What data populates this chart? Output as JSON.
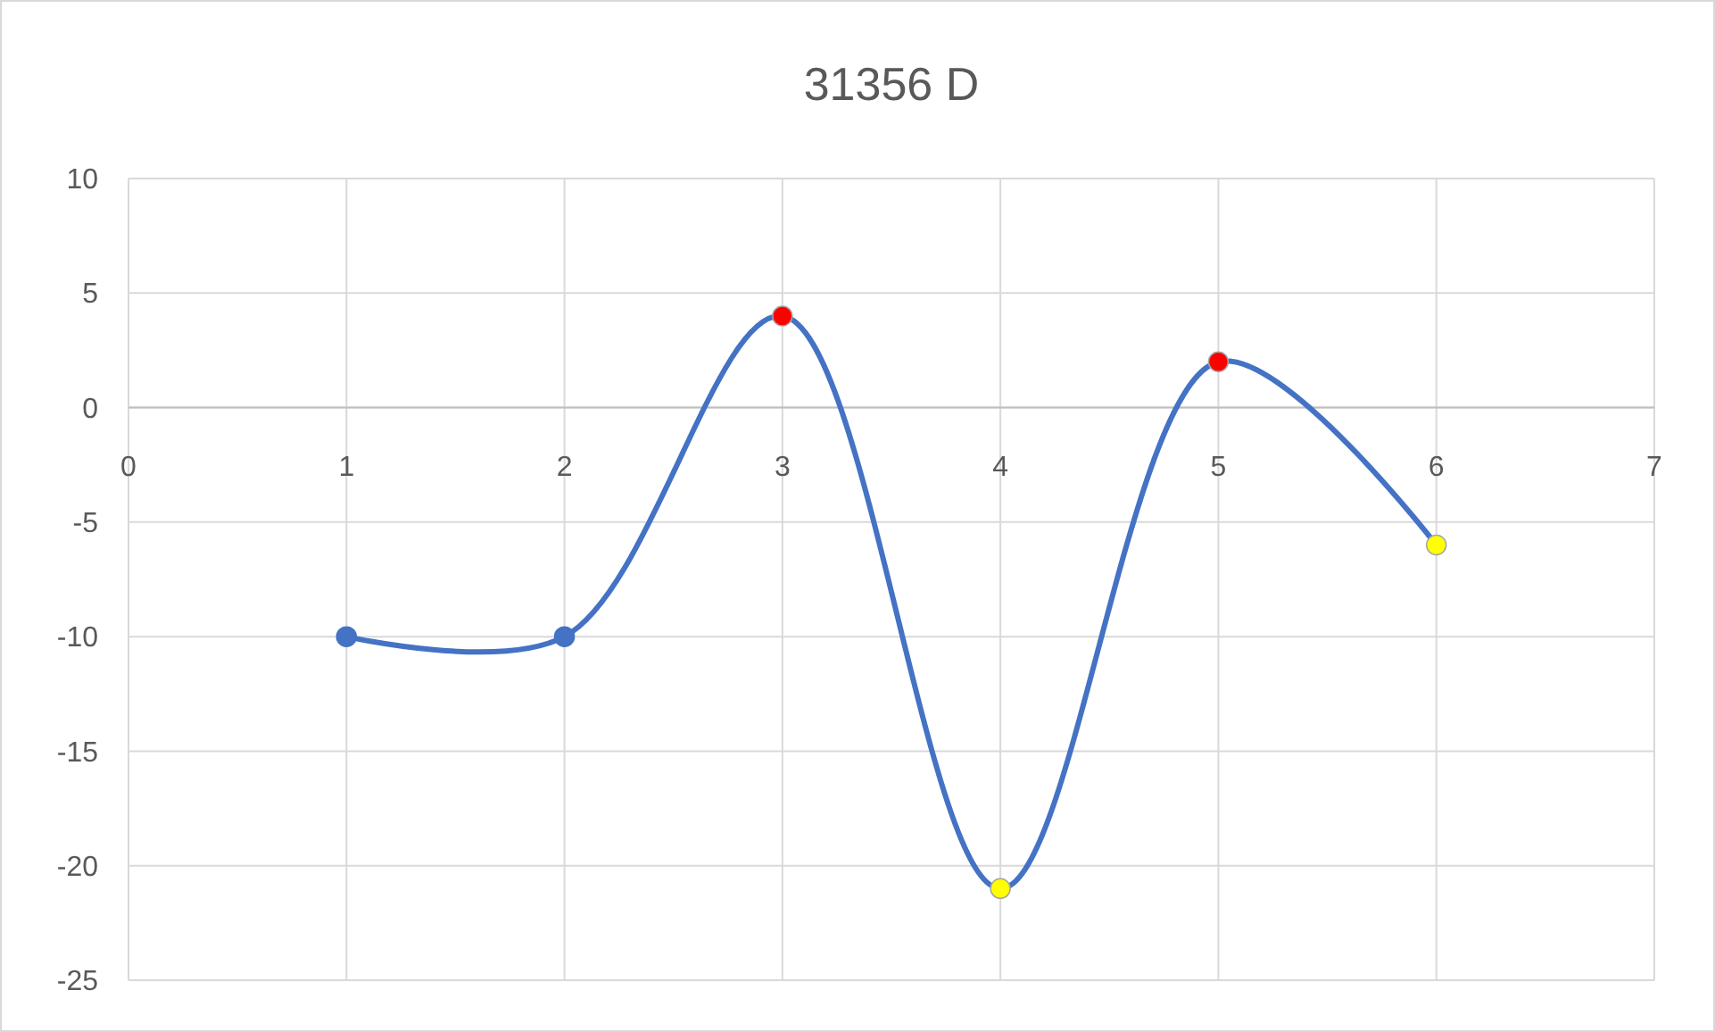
{
  "chart_data": {
    "type": "line",
    "title": "31356 D",
    "x": [
      1,
      2,
      3,
      4,
      5,
      6
    ],
    "series": [
      {
        "color": "#4472c4",
        "values": [
          -10,
          -10,
          4,
          -21,
          2,
          -6
        ],
        "colors": [
          "#4472c4",
          "#4472c4",
          "#ff0000",
          "#ffff00",
          "#ff0000",
          "#ffff00"
        ]
      }
    ],
    "xlim": [
      0,
      7
    ],
    "xticks": [
      0,
      1,
      2,
      3,
      4,
      5,
      6,
      7
    ],
    "ylim": [
      -25,
      10
    ],
    "yticks": [
      -25,
      -20,
      -15,
      -10,
      -5,
      0,
      5,
      10
    ],
    "grid": true,
    "marker": "circle",
    "line_style": "solid"
  }
}
